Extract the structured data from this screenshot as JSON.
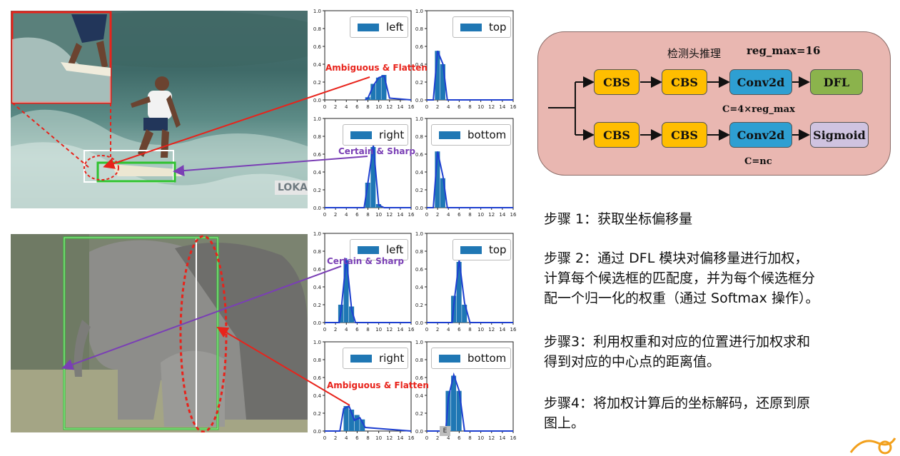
{
  "photos": {
    "top_watermark": "LOKAN",
    "bottom_corner_mark": "E"
  },
  "histograms": [
    {
      "legend": "left",
      "bins": [
        [
          8,
          0.03
        ],
        [
          9,
          0.18
        ],
        [
          10,
          0.25
        ],
        [
          11,
          0.28
        ]
      ],
      "line": [
        [
          7.5,
          0
        ],
        [
          8,
          0.02
        ],
        [
          9,
          0.16
        ],
        [
          10,
          0.25
        ],
        [
          11,
          0.27
        ],
        [
          12,
          0.02
        ],
        [
          16,
          0
        ]
      ]
    },
    {
      "legend": "top",
      "bins": [
        [
          2,
          0.55
        ],
        [
          3,
          0.4
        ]
      ],
      "line": [
        [
          0,
          0
        ],
        [
          1.2,
          0
        ],
        [
          2,
          0.55
        ],
        [
          3,
          0.4
        ],
        [
          3.8,
          0
        ],
        [
          16,
          0
        ]
      ]
    },
    {
      "legend": "right",
      "bins": [
        [
          8,
          0.28
        ],
        [
          9,
          0.68
        ],
        [
          10,
          0.04
        ]
      ],
      "line": [
        [
          0,
          0
        ],
        [
          7.3,
          0
        ],
        [
          8,
          0.28
        ],
        [
          9,
          0.7
        ],
        [
          10,
          0.03
        ],
        [
          11,
          0
        ],
        [
          16,
          0
        ]
      ]
    },
    {
      "legend": "bottom",
      "bins": [
        [
          2,
          0.63
        ],
        [
          3,
          0.33
        ]
      ],
      "line": [
        [
          0,
          0
        ],
        [
          1.2,
          0
        ],
        [
          2,
          0.63
        ],
        [
          3,
          0.35
        ],
        [
          3.8,
          0
        ],
        [
          16,
          0
        ]
      ]
    },
    {
      "legend": "left",
      "bins": [
        [
          3,
          0.2
        ],
        [
          4,
          0.7
        ],
        [
          5,
          0.18
        ]
      ],
      "line": [
        [
          0,
          0
        ],
        [
          2.7,
          0
        ],
        [
          3,
          0.12
        ],
        [
          4,
          0.72
        ],
        [
          5,
          0.14
        ],
        [
          5.7,
          0
        ],
        [
          16,
          0
        ]
      ]
    },
    {
      "legend": "top",
      "bins": [
        [
          5,
          0.3
        ],
        [
          6,
          0.68
        ],
        [
          7,
          0.2
        ]
      ],
      "line": [
        [
          0,
          0
        ],
        [
          4.7,
          0
        ],
        [
          5,
          0.2
        ],
        [
          6,
          0.7
        ],
        [
          7,
          0.22
        ],
        [
          8,
          0
        ],
        [
          16,
          0
        ]
      ]
    },
    {
      "legend": "right",
      "bins": [
        [
          4,
          0.28
        ],
        [
          5,
          0.24
        ],
        [
          6,
          0.18
        ],
        [
          7,
          0.13
        ]
      ],
      "line": [
        [
          0,
          0
        ],
        [
          2.8,
          0
        ],
        [
          3.5,
          0.25
        ],
        [
          4.5,
          0.28
        ],
        [
          5.5,
          0.12
        ],
        [
          6.5,
          0.15
        ],
        [
          7.5,
          0.04
        ],
        [
          16,
          0
        ]
      ]
    },
    {
      "legend": "bottom",
      "bins": [
        [
          4,
          0.45
        ],
        [
          5,
          0.62
        ],
        [
          6,
          0.45
        ]
      ],
      "line": [
        [
          0,
          0
        ],
        [
          3.5,
          0
        ],
        [
          4,
          0.38
        ],
        [
          5,
          0.63
        ],
        [
          6,
          0.45
        ],
        [
          7,
          0
        ],
        [
          16,
          0
        ]
      ]
    }
  ],
  "histogram_axes": {
    "y_ticks": [
      "0.0",
      "0.2",
      "0.4",
      "0.6",
      "0.8",
      "1.0"
    ],
    "x_ticks": [
      "0",
      "2",
      "4",
      "6",
      "8",
      "10",
      "12",
      "14",
      "16"
    ]
  },
  "annotations": {
    "top_ambiguous": "Ambiguous & Flatten",
    "top_certain": "Certain & Sharp",
    "bottom_certain": "Certain & Sharp",
    "bottom_ambiguous": "Ambiguous & Flatten"
  },
  "diagram": {
    "title": "检测头推理",
    "reg_max": "reg_max=16",
    "row1": [
      "CBS",
      "CBS",
      "Conv2d",
      "DFL"
    ],
    "row2": [
      "CBS",
      "CBS",
      "Conv2d",
      "Sigmoid"
    ],
    "row1_caption": "C=4×reg_max",
    "row2_caption": "C=nc"
  },
  "steps": [
    {
      "lines": [
        "步骤 1：获取坐标偏移量"
      ]
    },
    {
      "lines": [
        "步骤 2：通过 DFL 模块对偏移量进行加权，",
        "计算每个候选框的匹配度，并为每个候选框分",
        "配一个归一化的权重（通过 Softmax 操作）。"
      ]
    },
    {
      "lines": [
        "步骤3：利用权重和对应的位置进行加权求和",
        "得到对应的中心点的距离值。"
      ]
    },
    {
      "lines": [
        "步骤4：将加权计算后的坐标解码，还原到原",
        "图上。"
      ]
    }
  ],
  "colors": {
    "bar": "#1f77b4",
    "curve": "#1d3fd0",
    "red": "#e8231b",
    "purple": "#7a3fb5",
    "green": "#2fc22f"
  }
}
